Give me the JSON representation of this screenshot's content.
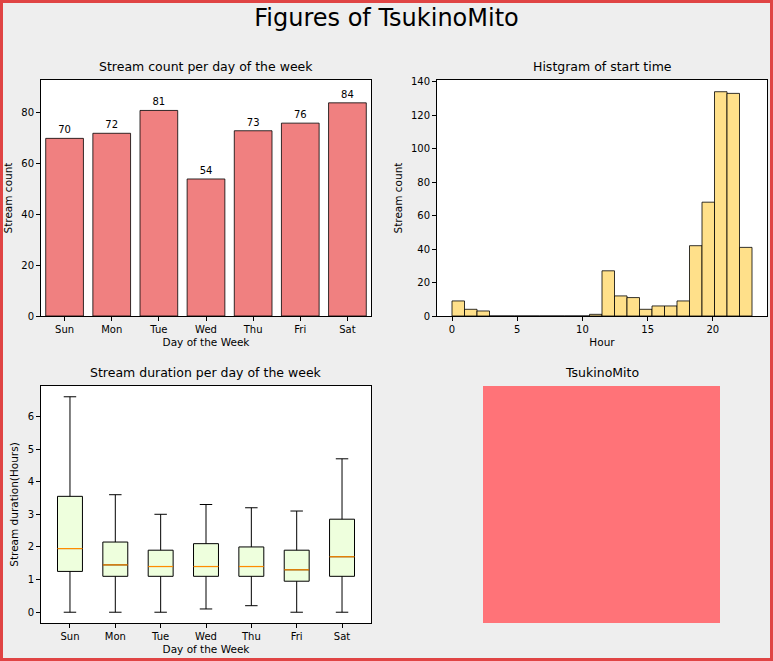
{
  "title": "Figures of TsukinoMito",
  "chart_data": [
    {
      "type": "bar",
      "title": "Stream count per day of the week",
      "x_label": "Day of the Week",
      "y_label": "Stream count",
      "categories": [
        "Sun",
        "Mon",
        "Tue",
        "Wed",
        "Thu",
        "Fri",
        "Sat"
      ],
      "values": [
        70,
        72,
        81,
        54,
        73,
        76,
        84
      ],
      "color": "#f08080",
      "data_labels": true,
      "grid": false,
      "ylim": [
        0,
        93
      ],
      "yticks": [
        0,
        20,
        40,
        60,
        80
      ]
    },
    {
      "type": "histogram",
      "title": "Histgram of start time",
      "x_label": "Hour",
      "y_label": "Stream count",
      "bins": [
        0,
        0.958,
        1.917,
        2.875,
        3.833,
        4.792,
        5.75,
        6.708,
        7.667,
        8.625,
        9.583,
        10.542,
        11.5,
        12.458,
        13.417,
        14.375,
        15.333,
        16.292,
        17.25,
        18.208,
        19.167,
        20.125,
        21.083,
        22.042,
        23
      ],
      "counts": [
        9,
        4,
        3,
        0,
        0,
        0,
        0,
        0,
        0,
        0,
        0,
        1,
        27,
        12,
        11,
        4,
        6,
        6,
        9,
        42,
        68,
        134,
        133,
        41
      ],
      "color": "#ffe08a",
      "grid": false,
      "xlim": [
        -1.15,
        24.15
      ],
      "xticks": [
        0,
        5,
        10,
        15,
        20
      ],
      "ylim": [
        0,
        141
      ],
      "yticks": [
        0,
        20,
        40,
        60,
        80,
        100,
        120,
        140
      ]
    },
    {
      "type": "box",
      "title": "Stream duration per day of the week",
      "x_label": "Day of the Week",
      "y_label": "Stream duration(Hours)",
      "categories": [
        "Sun",
        "Mon",
        "Tue",
        "Wed",
        "Thu",
        "Fri",
        "Sat"
      ],
      "min": [
        0,
        0,
        0,
        0.1,
        0.2,
        0,
        0
      ],
      "q1": [
        1.25,
        1.1,
        1.1,
        1.1,
        1.1,
        0.95,
        1.1
      ],
      "median": [
        1.95,
        1.45,
        1.4,
        1.4,
        1.4,
        1.3,
        1.7
      ],
      "q3": [
        3.55,
        2.15,
        1.9,
        2.1,
        2.0,
        1.9,
        2.85
      ],
      "max": [
        6.6,
        3.6,
        3.0,
        3.3,
        3.2,
        3.1,
        4.7
      ],
      "color": "#eeffdd",
      "grid": false,
      "ylim": [
        -0.33,
        6.93
      ],
      "yticks": [
        0,
        1,
        2,
        3,
        4,
        5,
        6
      ]
    }
  ],
  "image": {
    "title": "TsukinoMito",
    "color": "#ff7378"
  }
}
